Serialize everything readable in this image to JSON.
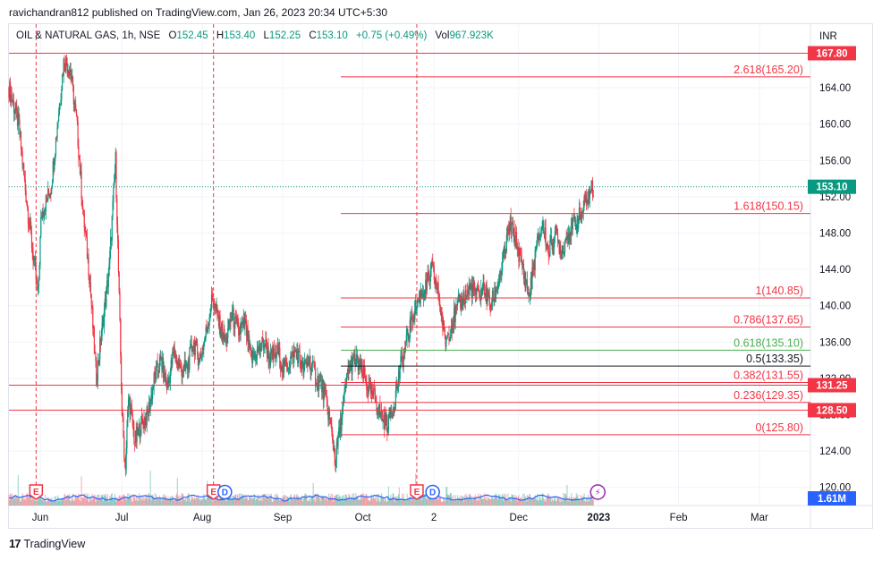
{
  "publisher_line": "ravichandran812 published on TradingView.com, Jan 26, 2023 20:34 UTC+5:30",
  "legend": {
    "symbol": "OIL & NATURAL GAS, 1h, NSE",
    "o_label": "O",
    "o": "152.45",
    "h_label": "H",
    "h": "153.40",
    "l_label": "L",
    "l": "152.25",
    "c_label": "C",
    "c": "153.10",
    "change": "+0.75 (+0.49%)",
    "vol_label": "Vol",
    "vol": "967.923K"
  },
  "currency": "INR",
  "footer_brand": "TradingView",
  "colors": {
    "up": "#089981",
    "down": "#f23645",
    "fib_red": "#f23645",
    "fib_green": "#4caf50",
    "fib_black": "#131722",
    "volume_ma": "#2962ff",
    "earnings": "#f23645",
    "dividend": "#2962ff",
    "event": "#9c27b0"
  },
  "chart_data": {
    "type": "candlestick",
    "ylim": [
      118,
      171
    ],
    "y_ticks": [
      "120.00",
      "124.00",
      "128.00",
      "132.00",
      "136.00",
      "140.00",
      "144.00",
      "148.00",
      "152.00",
      "156.00",
      "160.00",
      "164.00"
    ],
    "x_ticks": [
      "Jun",
      "Jul",
      "Aug",
      "Sep",
      "Oct",
      "2",
      "Dec",
      "2023",
      "Feb",
      "Mar"
    ],
    "x_tick_idx": [
      9.7,
      34.9,
      59.8,
      84.7,
      109.5,
      131.5,
      157.7,
      182.5,
      207.2,
      232.2
    ],
    "x_range": [
      0,
      248
    ],
    "price_path": [
      [
        0,
        164
      ],
      [
        3,
        160
      ],
      [
        5,
        153
      ],
      [
        9,
        141
      ],
      [
        10,
        150
      ],
      [
        13,
        153
      ],
      [
        15,
        160
      ],
      [
        17,
        167
      ],
      [
        19,
        166
      ],
      [
        21,
        160
      ],
      [
        23,
        150
      ],
      [
        25,
        143
      ],
      [
        27,
        132
      ],
      [
        29,
        138
      ],
      [
        31,
        144
      ],
      [
        33,
        156
      ],
      [
        34,
        142
      ],
      [
        35,
        128
      ],
      [
        36,
        122
      ],
      [
        37,
        130
      ],
      [
        39,
        125
      ],
      [
        41,
        127
      ],
      [
        43,
        128
      ],
      [
        45,
        132
      ],
      [
        47,
        134
      ],
      [
        49,
        131
      ],
      [
        51,
        135
      ],
      [
        53,
        133
      ],
      [
        55,
        133
      ],
      [
        57,
        136
      ],
      [
        59,
        134
      ],
      [
        61,
        137
      ],
      [
        63,
        141
      ],
      [
        65,
        138
      ],
      [
        67,
        136
      ],
      [
        69,
        139
      ],
      [
        71,
        137
      ],
      [
        73,
        138
      ],
      [
        75,
        134
      ],
      [
        77,
        135
      ],
      [
        79,
        136
      ],
      [
        81,
        134
      ],
      [
        83,
        135
      ],
      [
        85,
        133
      ],
      [
        87,
        134
      ],
      [
        89,
        135
      ],
      [
        91,
        133
      ],
      [
        93,
        134
      ],
      [
        95,
        132
      ],
      [
        97,
        131
      ],
      [
        99,
        128
      ],
      [
        101,
        123
      ],
      [
        103,
        128
      ],
      [
        105,
        133
      ],
      [
        107,
        134
      ],
      [
        109,
        133
      ],
      [
        111,
        131
      ],
      [
        113,
        130
      ],
      [
        115,
        128
      ],
      [
        117,
        127
      ],
      [
        119,
        129
      ],
      [
        121,
        133
      ],
      [
        123,
        136
      ],
      [
        125,
        139
      ],
      [
        127,
        141
      ],
      [
        129,
        142
      ],
      [
        131,
        144
      ],
      [
        133,
        141
      ],
      [
        135,
        136
      ],
      [
        137,
        138
      ],
      [
        139,
        140
      ],
      [
        141,
        141
      ],
      [
        143,
        142
      ],
      [
        145,
        141
      ],
      [
        147,
        142
      ],
      [
        149,
        140
      ],
      [
        151,
        142
      ],
      [
        153,
        145
      ],
      [
        155,
        149
      ],
      [
        157,
        147
      ],
      [
        159,
        144
      ],
      [
        161,
        141
      ],
      [
        163,
        146
      ],
      [
        165,
        149
      ],
      [
        167,
        146
      ],
      [
        169,
        148
      ],
      [
        171,
        146
      ],
      [
        173,
        148
      ],
      [
        175,
        149
      ],
      [
        177,
        150
      ],
      [
        179,
        152
      ],
      [
        181,
        153.1
      ]
    ],
    "fib_levels": [
      {
        "label": "2.618(165.20)",
        "price": 165.2,
        "color": "red"
      },
      {
        "label": "1.618(150.15)",
        "price": 150.15,
        "color": "red"
      },
      {
        "label": "1(140.85)",
        "price": 140.85,
        "color": "red"
      },
      {
        "label": "0.786(137.65)",
        "price": 137.65,
        "color": "red"
      },
      {
        "label": "0.618(135.10)",
        "price": 135.1,
        "color": "green"
      },
      {
        "label": "0.5(133.35)",
        "price": 133.35,
        "color": "black"
      },
      {
        "label": "0.382(131.55)",
        "price": 131.55,
        "color": "red"
      },
      {
        "label": "0.236(129.35)",
        "price": 129.35,
        "color": "red"
      },
      {
        "label": "0(125.80)",
        "price": 125.8,
        "color": "red"
      }
    ],
    "fib_x_start": 102.7,
    "horizontal_lines": [
      {
        "price": 167.8,
        "label": "167.80"
      },
      {
        "price": 131.25,
        "label": "131.25"
      },
      {
        "price": 128.5,
        "label": "128.50"
      }
    ],
    "current_price": {
      "price": 153.1,
      "label": "153.10"
    },
    "volume_label": "1.61M",
    "vertical_markers_idx": [
      8.4,
      63.3,
      126.2
    ],
    "events": [
      {
        "type": "earnings",
        "idx": 8.4,
        "label": "E"
      },
      {
        "type": "earnings",
        "idx": 63.3,
        "label": "E"
      },
      {
        "type": "dividend",
        "idx": 66.8,
        "label": "D"
      },
      {
        "type": "earnings",
        "idx": 126.2,
        "label": "E"
      },
      {
        "type": "dividend",
        "idx": 131.1,
        "label": "D"
      },
      {
        "type": "event",
        "idx": 182.2,
        "label": "⚡"
      }
    ]
  }
}
